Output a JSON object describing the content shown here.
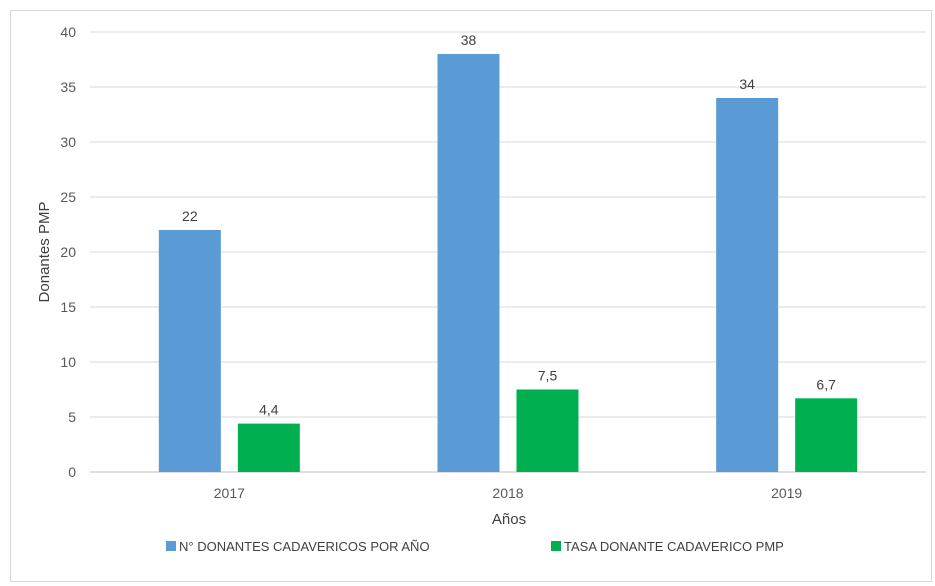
{
  "chart_data": {
    "type": "bar",
    "title": "",
    "xlabel": "Años",
    "ylabel": "Donantes PMP",
    "categories": [
      "2017",
      "2018",
      "2019"
    ],
    "ylim": [
      0,
      40
    ],
    "yticks": [
      0,
      5,
      10,
      15,
      20,
      25,
      30,
      35,
      40
    ],
    "grid": true,
    "legend_position": "bottom",
    "series": [
      {
        "name": "N° DONANTES CADAVERICOS POR AÑO",
        "color": "#5b9bd5",
        "values": [
          22,
          38,
          34
        ],
        "labels": [
          "22",
          "38",
          "34"
        ]
      },
      {
        "name": "TASA DONANTE CADAVERICO PMP",
        "color": "#00b050",
        "values": [
          4.4,
          7.5,
          6.7
        ],
        "labels": [
          "4,4",
          "7,5",
          "6,7"
        ]
      }
    ]
  }
}
